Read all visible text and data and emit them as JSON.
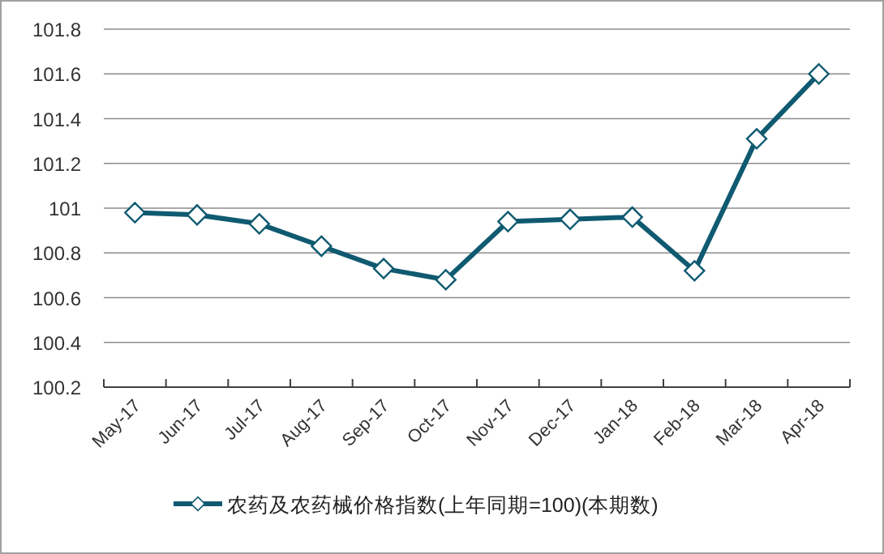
{
  "chart_data": {
    "type": "line",
    "categories": [
      "May-17",
      "Jun-17",
      "Jul-17",
      "Aug-17",
      "Sep-17",
      "Oct-17",
      "Nov-17",
      "Dec-17",
      "Jan-18",
      "Feb-18",
      "Mar-18",
      "Apr-18"
    ],
    "series": [
      {
        "name": "农药及农药械价格指数(上年同期=100)(本期数)",
        "color": "#0f5a70",
        "values": [
          100.98,
          100.97,
          100.93,
          100.83,
          100.73,
          100.68,
          100.94,
          100.95,
          100.96,
          100.72,
          101.31,
          101.6
        ]
      }
    ],
    "ylim": [
      100.2,
      101.8
    ],
    "yticks": [
      100.2,
      100.4,
      100.6,
      100.8,
      101,
      101.2,
      101.4,
      101.6,
      101.8
    ],
    "grid": "y",
    "legend": "bottom",
    "marker": "diamond",
    "line_style": "solid"
  }
}
